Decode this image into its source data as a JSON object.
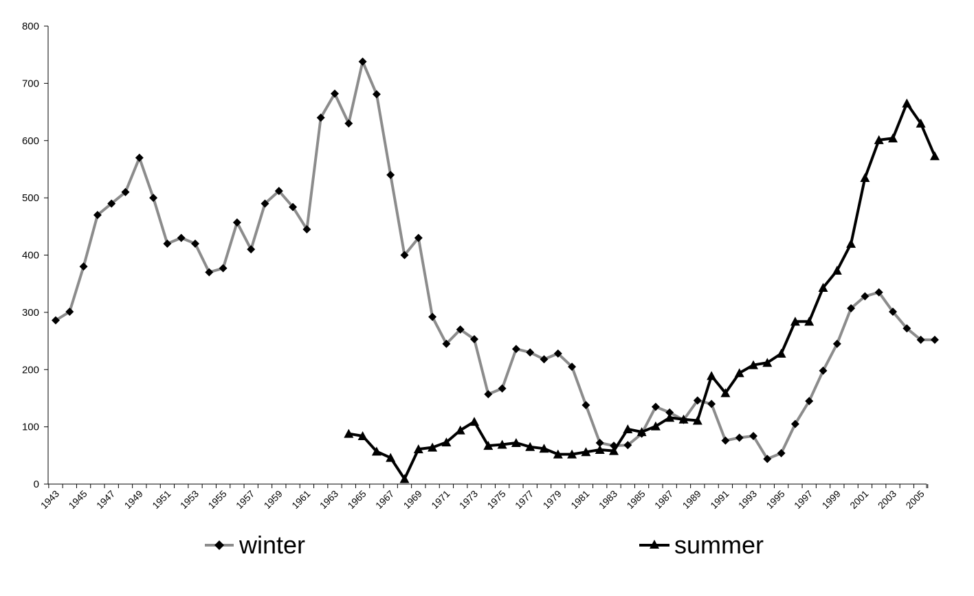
{
  "chart_data": {
    "type": "line",
    "ylim": [
      0,
      800
    ],
    "yticks": [
      0,
      100,
      200,
      300,
      400,
      500,
      600,
      700,
      800
    ],
    "xlim": [
      1943,
      2006
    ],
    "xticks": [
      1943,
      1945,
      1947,
      1949,
      1951,
      1953,
      1955,
      1957,
      1959,
      1961,
      1963,
      1965,
      1967,
      1969,
      1971,
      1973,
      1975,
      1977,
      1979,
      1981,
      1983,
      1985,
      1987,
      1989,
      1991,
      1993,
      1995,
      1997,
      1999,
      2001,
      2003,
      2005
    ],
    "grid": false,
    "legend_position": "bottom",
    "series": [
      {
        "name": "winter",
        "color": "#8c8c8c",
        "marker": "diamond",
        "x": [
          1943,
          1944,
          1945,
          1946,
          1947,
          1948,
          1949,
          1950,
          1951,
          1952,
          1953,
          1954,
          1955,
          1956,
          1957,
          1958,
          1959,
          1960,
          1961,
          1962,
          1963,
          1964,
          1965,
          1966,
          1967,
          1968,
          1969,
          1970,
          1971,
          1972,
          1973,
          1974,
          1975,
          1976,
          1977,
          1978,
          1979,
          1980,
          1981,
          1982,
          1983,
          1984,
          1985,
          1986,
          1987,
          1988,
          1989,
          1990,
          1991,
          1992,
          1993,
          1994,
          1995,
          1996,
          1997,
          1998,
          1999,
          2000,
          2001,
          2002,
          2003,
          2004,
          2005,
          2006
        ],
        "values": [
          286,
          301,
          380,
          470,
          490,
          510,
          570,
          500,
          420,
          430,
          420,
          370,
          377,
          457,
          410,
          490,
          512,
          484,
          445,
          640,
          682,
          630,
          738,
          681,
          540,
          400,
          430,
          292,
          245,
          270,
          253,
          157,
          167,
          236,
          230,
          218,
          228,
          205,
          138,
          72,
          67,
          68,
          88,
          135,
          125,
          112,
          146,
          140,
          76,
          81,
          84,
          44,
          54,
          105,
          145,
          198,
          245,
          307,
          328,
          335,
          301,
          272,
          252,
          252
        ]
      },
      {
        "name": "summer",
        "color": "#000000",
        "marker": "triangle",
        "x": [
          1964,
          1965,
          1966,
          1967,
          1968,
          1969,
          1970,
          1971,
          1972,
          1973,
          1974,
          1975,
          1976,
          1977,
          1978,
          1979,
          1980,
          1981,
          1982,
          1983,
          1984,
          1985,
          1986,
          1987,
          1988,
          1989,
          1990,
          1991,
          1992,
          1993,
          1994,
          1995,
          1996,
          1997,
          1998,
          1999,
          2000,
          2001,
          2002,
          2003,
          2004,
          2005,
          2006
        ],
        "values": [
          88,
          84,
          57,
          46,
          9,
          61,
          64,
          73,
          94,
          109,
          67,
          69,
          72,
          65,
          62,
          52,
          52,
          56,
          60,
          58,
          96,
          91,
          101,
          116,
          113,
          111,
          189,
          159,
          194,
          208,
          212,
          228,
          284,
          284,
          343,
          373,
          420,
          535,
          601,
          604,
          665,
          630,
          573
        ]
      }
    ]
  }
}
